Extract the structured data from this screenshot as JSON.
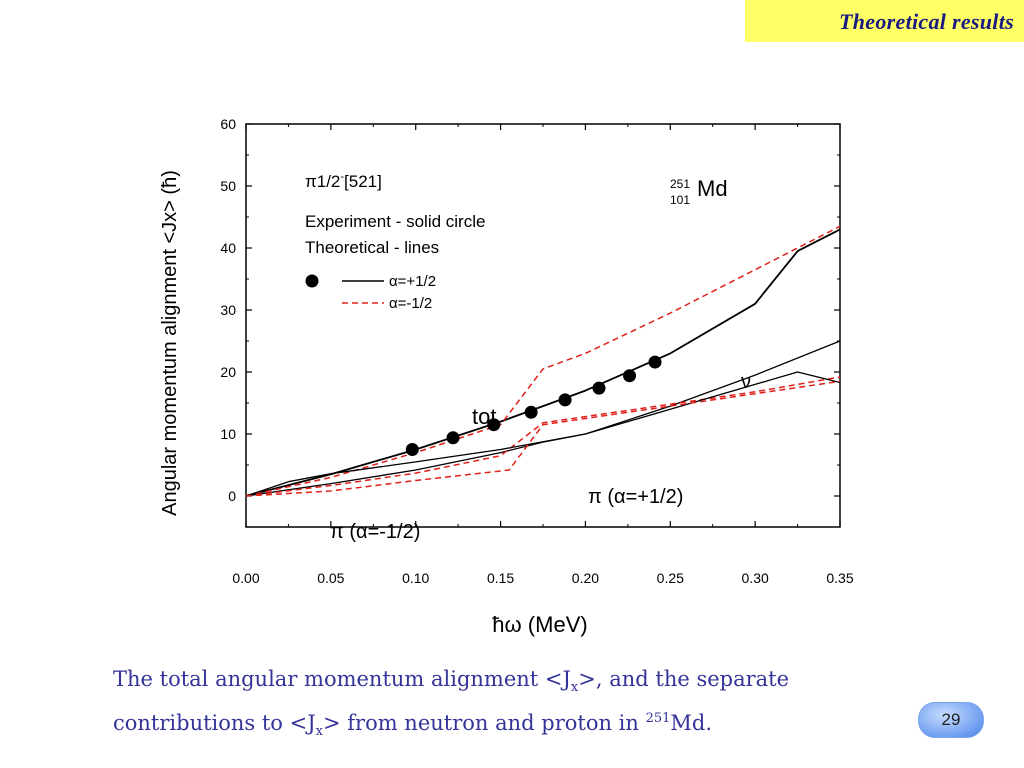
{
  "header": {
    "title": "Theoretical results"
  },
  "caption": {
    "part1": "The total angular momentum alignment <J",
    "sub1": "x",
    "part2": ">, and the separate contributions to <J",
    "sub2": "x",
    "part3": "> from neutron and proton in ",
    "sup": "251",
    "part4": "Md."
  },
  "page_number": "29",
  "chart_data": {
    "type": "line",
    "xlabel": "ħω (MeV)",
    "ylabel": "Angular momentum alignment <Jx> (ħ)",
    "xlim": [
      0.0,
      0.35
    ],
    "ylim": [
      -5,
      60
    ],
    "xticks": [
      "0.00",
      "0.05",
      "0.10",
      "0.15",
      "0.20",
      "0.25",
      "0.30",
      "0.35"
    ],
    "yticks": [
      "0",
      "10",
      "20",
      "30",
      "40",
      "50",
      "60"
    ],
    "grid": false,
    "colors": {
      "theory_positive": "#000000",
      "theory_negative": "#e0201a",
      "points": "#000000"
    },
    "annotations": {
      "config_pi": "π",
      "config_rest": "1/2",
      "config_sup": "-",
      "config_tail": "[521]",
      "nucleus_mass": "251",
      "nucleus_z": "101",
      "nucleus_symbol": "Md",
      "legend_line1": "Experiment - solid circle",
      "legend_line2": "Theoretical - lines",
      "legend_pos": "α=+1/2",
      "legend_neg": "α=-1/2",
      "label_tot": "tot",
      "label_nu": "ν",
      "label_pi_pos": "π (α=+1/2)",
      "label_pi_neg": "π (α=-1/2)"
    },
    "series": [
      {
        "name": "Experiment",
        "kind": "points",
        "x": [
          0.098,
          0.122,
          0.146,
          0.168,
          0.188,
          0.208,
          0.226,
          0.241
        ],
        "y": [
          7.5,
          9.4,
          11.5,
          13.5,
          15.5,
          17.4,
          19.4,
          21.6
        ]
      },
      {
        "name": "tot α=+1/2",
        "kind": "solid",
        "x": [
          0.0,
          0.05,
          0.1,
          0.15,
          0.175,
          0.2,
          0.25,
          0.3,
          0.325,
          0.35
        ],
        "y": [
          0.0,
          3.5,
          7.5,
          12.0,
          14.5,
          17.0,
          23.0,
          31.0,
          39.5,
          43.0
        ]
      },
      {
        "name": "tot α=-1/2",
        "kind": "dashed",
        "x": [
          0.0,
          0.05,
          0.1,
          0.15,
          0.175,
          0.2,
          0.25,
          0.3,
          0.35
        ],
        "y": [
          0.0,
          3.0,
          7.0,
          11.5,
          20.5,
          23.0,
          29.5,
          36.5,
          43.5
        ]
      },
      {
        "name": "ν α=+1/2",
        "kind": "solid",
        "x": [
          0.0,
          0.05,
          0.1,
          0.15,
          0.175,
          0.2,
          0.25,
          0.3,
          0.35
        ],
        "y": [
          0.0,
          2.0,
          4.2,
          7.0,
          8.7,
          10.0,
          14.5,
          19.5,
          25.0
        ]
      },
      {
        "name": "ν α=-1/2",
        "kind": "dashed",
        "x": [
          0.0,
          0.05,
          0.1,
          0.15,
          0.175,
          0.2,
          0.25,
          0.3,
          0.35
        ],
        "y": [
          0.0,
          1.7,
          3.7,
          6.5,
          11.8,
          12.8,
          14.8,
          16.8,
          19.2
        ]
      },
      {
        "name": "π α=+1/2",
        "kind": "solid",
        "x": [
          0.0,
          0.025,
          0.05,
          0.1,
          0.15,
          0.2,
          0.25,
          0.3,
          0.325,
          0.35
        ],
        "y": [
          0.0,
          2.3,
          3.6,
          5.5,
          7.5,
          10.0,
          14.0,
          18.0,
          20.0,
          18.3
        ]
      },
      {
        "name": "π α=-1/2",
        "kind": "dashed",
        "x": [
          0.0,
          0.05,
          0.1,
          0.155,
          0.175,
          0.2,
          0.25,
          0.3,
          0.35
        ],
        "y": [
          0.0,
          0.8,
          2.5,
          4.2,
          11.5,
          12.5,
          14.5,
          16.5,
          18.5
        ]
      }
    ]
  }
}
